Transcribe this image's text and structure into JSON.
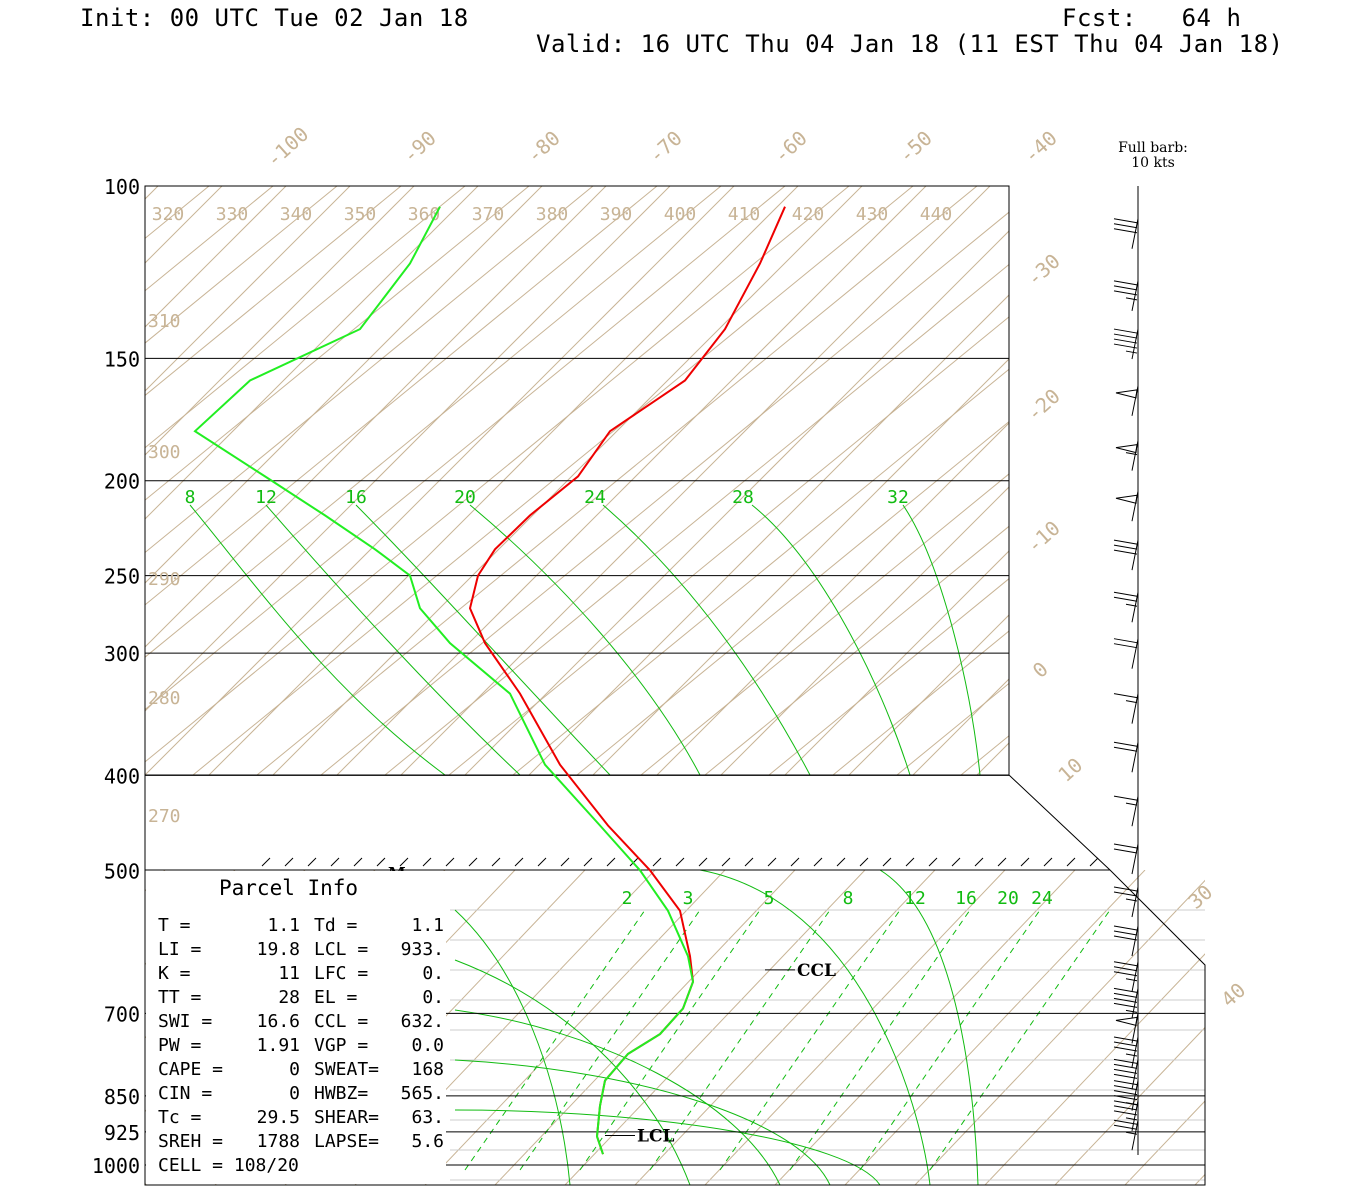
{
  "header": {
    "init": "Init: 00 UTC Tue 02 Jan 18",
    "fcst": "Fcst:   64 h",
    "valid": "Valid: 16 UTC Thu 04 Jan 18 (11 EST Thu 04 Jan 18)"
  },
  "barb_legend": {
    "line1": "Full barb:",
    "line2": "10 kts"
  },
  "colors": {
    "temperature": "#ee0000",
    "dewpoint": "#22ee22",
    "mixing_ratio": "#11bb11",
    "isotherm": "#c8b496",
    "grid": "#000000"
  },
  "chart_data": {
    "type": "line",
    "title": "",
    "xlabel": "",
    "ylabel": "",
    "y_scale": "log",
    "pressure_ticks": [
      100,
      150,
      200,
      250,
      300,
      400,
      500,
      700,
      850,
      925,
      1000
    ],
    "isotherm_labels": [
      -100,
      -90,
      -80,
      -70,
      -60,
      -50,
      -40,
      -30,
      -20,
      -10,
      0,
      10,
      30,
      40
    ],
    "theta_top_labels": [
      320,
      330,
      340,
      350,
      360,
      370,
      380,
      390,
      400,
      410,
      420,
      430,
      440
    ],
    "theta_left_labels": [
      310,
      300,
      290,
      280,
      270
    ],
    "upper_mixing_ratio_labels": [
      8,
      12,
      16,
      20,
      24,
      28,
      32
    ],
    "lower_mixing_ratio_labels": [
      2,
      3,
      5,
      8,
      12,
      16,
      20,
      24
    ],
    "series": [
      {
        "name": "",
        "pressure": [
          105,
          120,
          140,
          158,
          178,
          198,
          217,
          235,
          250,
          270,
          293,
          330,
          390,
          450,
          500,
          550,
          612,
          650,
          692,
          735,
          770,
          820,
          870,
          935,
          975
        ],
        "x": [
          785,
          760,
          725,
          685,
          610,
          578,
          530,
          495,
          478,
          470,
          485,
          520,
          560,
          608,
          650,
          680,
          690,
          693,
          683,
          660,
          628,
          605,
          600,
          597,
          603
        ]
      },
      {
        "name": "",
        "pressure": [
          105,
          120,
          140,
          158,
          178,
          198,
          217,
          235,
          250,
          270,
          293,
          330,
          390,
          450,
          500,
          550,
          612,
          650,
          692,
          735,
          770,
          820,
          870,
          935,
          975
        ],
        "x": [
          440,
          410,
          360,
          250,
          195,
          265,
          325,
          375,
          410,
          420,
          450,
          510,
          545,
          600,
          640,
          668,
          688,
          693,
          683,
          660,
          628,
          605,
          600,
          597,
          603
        ]
      }
    ],
    "levels": [
      {
        "label": "LCL",
        "pressure": 933
      },
      {
        "label": "CCL",
        "pressure": 632
      },
      {
        "label": "M",
        "pressure": 500
      }
    ],
    "winds": [
      {
        "p": 108,
        "kts": 30
      },
      {
        "p": 125,
        "kts": 35
      },
      {
        "p": 140,
        "kts": 45
      },
      {
        "p": 160,
        "kts": 50
      },
      {
        "p": 182,
        "kts": 55
      },
      {
        "p": 205,
        "kts": 50
      },
      {
        "p": 230,
        "kts": 30
      },
      {
        "p": 260,
        "kts": 25
      },
      {
        "p": 290,
        "kts": 20
      },
      {
        "p": 330,
        "kts": 15
      },
      {
        "p": 370,
        "kts": 20
      },
      {
        "p": 420,
        "kts": 15
      },
      {
        "p": 470,
        "kts": 20
      },
      {
        "p": 520,
        "kts": 25
      },
      {
        "p": 570,
        "kts": 30
      },
      {
        "p": 620,
        "kts": 35
      },
      {
        "p": 660,
        "kts": 45
      },
      {
        "p": 700,
        "kts": 50
      },
      {
        "p": 740,
        "kts": 35
      },
      {
        "p": 780,
        "kts": 40
      },
      {
        "p": 820,
        "kts": 45
      },
      {
        "p": 860,
        "kts": 35
      },
      {
        "p": 900,
        "kts": 25
      }
    ]
  },
  "parcel_info": {
    "title": "Parcel Info",
    "rows": [
      [
        "T  =",
        "1.1",
        "Td =",
        "1.1"
      ],
      [
        "LI =",
        "19.8",
        "LCL =",
        "933."
      ],
      [
        "K  =",
        "11",
        "LFC =",
        "0."
      ],
      [
        "TT =",
        "28",
        "EL  =",
        "0."
      ],
      [
        "SWI =",
        "16.6",
        "CCL =",
        "632."
      ],
      [
        "PW =",
        "1.91",
        "VGP =",
        "0.0"
      ],
      [
        "CAPE =",
        "0",
        "SWEAT=",
        "168"
      ],
      [
        "CIN =",
        "0",
        "HWBZ=",
        "565."
      ],
      [
        "Tc =",
        "29.5",
        "SHEAR=",
        "63."
      ],
      [
        "SREH =",
        "1788",
        "LAPSE=",
        "5.6"
      ]
    ],
    "cell": "CELL = 108/20"
  }
}
